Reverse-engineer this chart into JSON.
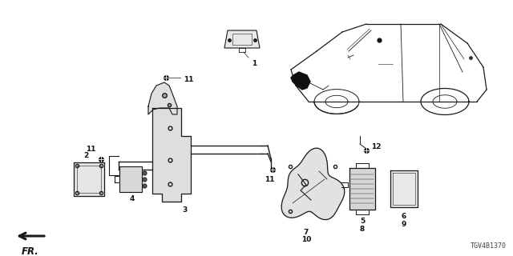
{
  "bg_color": "#ffffff",
  "fig_width": 6.4,
  "fig_height": 3.2,
  "dpi": 100,
  "diagram_id": "TGV4B1370",
  "fr_label": "FR.",
  "line_color": "#1a1a1a",
  "text_color": "#111111"
}
